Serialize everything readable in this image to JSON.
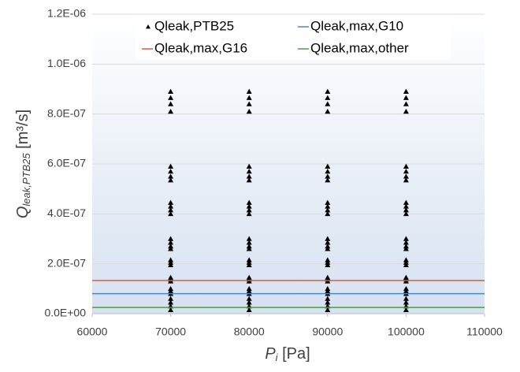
{
  "chart_data": {
    "type": "scatter",
    "xlabel": {
      "main": "P",
      "sub": "i",
      "unit": " [Pa]"
    },
    "ylabel": {
      "main": "Q",
      "sub": "leak,PTB25",
      "unit": " [m³/s]"
    },
    "xlim": [
      60000,
      110000
    ],
    "xticks": [
      60000,
      70000,
      80000,
      90000,
      100000,
      110000
    ],
    "ylim": [
      0,
      1.2e-06
    ],
    "yticks": [
      {
        "value": 0,
        "label": "0.0E+00"
      },
      {
        "value": 2e-07,
        "label": "2.0E-07"
      },
      {
        "value": 4e-07,
        "label": "4.0E-07"
      },
      {
        "value": 6e-07,
        "label": "6.0E-07"
      },
      {
        "value": 8e-07,
        "label": "8.0E-07"
      },
      {
        "value": 1e-06,
        "label": "1.0E-06"
      },
      {
        "value": 1.2e-06,
        "label": "1.2E-06"
      }
    ],
    "grid": true,
    "legend": "top",
    "series": [
      {
        "name": "Qleak,PTB25",
        "color": "#000000",
        "mode": "markers",
        "x": [
          70000,
          70000,
          70000,
          70000,
          70000,
          70000,
          70000,
          70000,
          70000,
          70000,
          70000,
          70000,
          70000,
          70000,
          70000,
          70000,
          70000,
          70000,
          70000,
          70000,
          70000,
          70000,
          70000,
          70000,
          70000,
          70000,
          70000,
          70000,
          70000,
          80000,
          80000,
          80000,
          80000,
          80000,
          80000,
          80000,
          80000,
          80000,
          80000,
          80000,
          80000,
          80000,
          80000,
          80000,
          80000,
          80000,
          80000,
          80000,
          80000,
          80000,
          80000,
          80000,
          80000,
          80000,
          80000,
          80000,
          80000,
          80000,
          90000,
          90000,
          90000,
          90000,
          90000,
          90000,
          90000,
          90000,
          90000,
          90000,
          90000,
          90000,
          90000,
          90000,
          90000,
          90000,
          90000,
          90000,
          90000,
          90000,
          90000,
          90000,
          90000,
          90000,
          90000,
          90000,
          90000,
          90000,
          90000,
          100000,
          100000,
          100000,
          100000,
          100000,
          100000,
          100000,
          100000,
          100000,
          100000,
          100000,
          100000,
          100000,
          100000,
          100000,
          100000,
          100000,
          100000,
          100000,
          100000,
          100000,
          100000,
          100000,
          100000,
          100000,
          100000,
          100000,
          100000,
          100000
        ],
        "values": [
          8.9e-07,
          8.65e-07,
          8.4e-07,
          8.1e-07,
          5.9e-07,
          5.7e-07,
          5.5e-07,
          5.35e-07,
          4.45e-07,
          4.3e-07,
          4.15e-07,
          4e-07,
          3e-07,
          2.85e-07,
          2.7e-07,
          2.6e-07,
          2.15e-07,
          2.05e-07,
          1.95e-07,
          1.45e-07,
          1.38e-07,
          1.3e-07,
          1e-07,
          9e-08,
          8e-08,
          6e-08,
          4.5e-08,
          3e-08,
          1.5e-08,
          8.9e-07,
          8.65e-07,
          8.4e-07,
          8.1e-07,
          5.9e-07,
          5.7e-07,
          5.5e-07,
          5.35e-07,
          4.45e-07,
          4.3e-07,
          4.15e-07,
          4e-07,
          3e-07,
          2.85e-07,
          2.7e-07,
          2.6e-07,
          2.15e-07,
          2.05e-07,
          1.95e-07,
          1.45e-07,
          1.38e-07,
          1.3e-07,
          1e-07,
          9e-08,
          8e-08,
          6e-08,
          4.5e-08,
          3e-08,
          1.5e-08,
          8.9e-07,
          8.65e-07,
          8.4e-07,
          8.1e-07,
          5.9e-07,
          5.7e-07,
          5.5e-07,
          5.35e-07,
          4.45e-07,
          4.3e-07,
          4.15e-07,
          4e-07,
          3e-07,
          2.85e-07,
          2.7e-07,
          2.6e-07,
          2.15e-07,
          2.05e-07,
          1.95e-07,
          1.45e-07,
          1.38e-07,
          1.3e-07,
          1e-07,
          9e-08,
          8e-08,
          6e-08,
          4.5e-08,
          3e-08,
          1.5e-08,
          8.9e-07,
          8.65e-07,
          8.4e-07,
          8.1e-07,
          5.9e-07,
          5.7e-07,
          5.5e-07,
          5.35e-07,
          4.45e-07,
          4.3e-07,
          4.15e-07,
          4e-07,
          3e-07,
          2.85e-07,
          2.7e-07,
          2.6e-07,
          2.15e-07,
          2.05e-07,
          1.95e-07,
          1.45e-07,
          1.38e-07,
          1.3e-07,
          1e-07,
          9e-08,
          8e-08,
          6e-08,
          4.5e-08,
          3e-08,
          1.5e-08
        ]
      },
      {
        "name": "Qleak,max,G10",
        "color": "#4a86c5",
        "mode": "lines",
        "x": [
          60000,
          110000
        ],
        "values": [
          8e-08,
          8e-08
        ]
      },
      {
        "name": "Qleak,max,G16",
        "color": "#d0603a",
        "mode": "lines",
        "x": [
          60000,
          110000
        ],
        "values": [
          1.33e-07,
          1.33e-07
        ]
      },
      {
        "name": "Qleak,max,other",
        "color": "#4f9a4a",
        "mode": "lines",
        "x": [
          60000,
          110000
        ],
        "values": [
          2.5e-08,
          2.5e-08
        ]
      }
    ]
  }
}
